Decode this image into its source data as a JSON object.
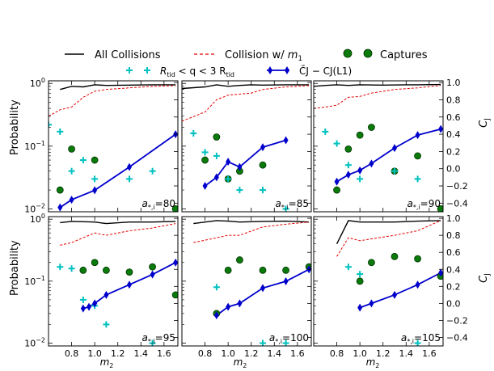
{
  "chart_data": {
    "type": "line",
    "layout": "2x3 panel grid with shared legend",
    "legend": {
      "all_collisions": "All Collisions",
      "collision_m1_prefix": "Collision w/ ",
      "collision_m1_var": "m",
      "collision_m1_sub": "1",
      "captures": "Captures",
      "tidal_prefix": "R",
      "tidal_sub": "tid",
      "tidal_mid": " < q < 3 R",
      "tidal_sub2": "tid",
      "cj_label": "C̄J − CJ(L1)"
    },
    "colors": {
      "all_collisions": "#000000",
      "collision_m1": "#e60000",
      "captures_fill": "#0a7a0a",
      "captures_edge": "#003300",
      "tidal": "#00c0c0",
      "cj": "#0000cc"
    },
    "x_axis": {
      "label_var": "m",
      "label_sub": "2",
      "range": [
        0.6,
        1.72
      ],
      "ticks": [
        0.8,
        1.0,
        1.2,
        1.4,
        1.6
      ],
      "tick_labels": [
        "0.8",
        "1.0",
        "1.2",
        "1.4",
        "1.6"
      ]
    },
    "y_left": {
      "label": "Probability",
      "scale": "log",
      "range": [
        0.009,
        1.1
      ],
      "ticks": [
        0.01,
        0.1,
        1
      ],
      "tick_labels": [
        {
          "base": "10",
          "exp": "−2"
        },
        {
          "base": "10",
          "exp": "−1"
        },
        {
          "base": "10",
          "exp": "0"
        }
      ]
    },
    "y_right": {
      "label_var": "C",
      "label_sub": "J",
      "range": [
        -0.5,
        1.02
      ],
      "ticks": [
        1.0,
        0.8,
        0.6,
        0.4,
        0.2,
        0.0,
        -0.2,
        -0.4
      ],
      "tick_labels": [
        "1.0",
        "0.8",
        "0.6",
        "0.4",
        "0.2",
        "0.0",
        "−0.2",
        "−0.4"
      ]
    },
    "panels": [
      {
        "label_prefix": "a",
        "label_sub": "*,i",
        "label_value": "=80",
        "all_collisions": {
          "x": [
            0.7,
            0.8,
            0.9,
            1.0,
            1.1,
            1.3,
            1.5,
            1.7
          ],
          "y": [
            0.8,
            0.9,
            0.88,
            0.95,
            0.93,
            0.94,
            0.95,
            0.95
          ]
        },
        "collision_m1": {
          "x": [
            0.6,
            0.7,
            0.8,
            0.9,
            1.0,
            1.1,
            1.3,
            1.5,
            1.7
          ],
          "y": [
            0.3,
            0.38,
            0.42,
            0.6,
            0.75,
            0.8,
            0.85,
            0.9,
            0.92
          ]
        },
        "captures": {
          "x": [
            0.7,
            0.8,
            1.0,
            1.7
          ],
          "y": [
            0.02,
            0.09,
            0.06,
            0.01
          ]
        },
        "tidal": {
          "x": [
            0.6,
            0.7,
            0.8,
            0.9,
            1.0,
            1.3,
            1.5
          ],
          "y": [
            0.22,
            0.17,
            0.04,
            0.06,
            0.03,
            0.03,
            0.04
          ]
        },
        "cj": {
          "x": [
            0.7,
            0.8,
            1.0,
            1.3,
            1.7
          ],
          "y": [
            -0.45,
            -0.36,
            -0.25,
            0.02,
            0.4
          ]
        }
      },
      {
        "label_prefix": "a",
        "label_sub": "*,i",
        "label_value": "=85",
        "all_collisions": {
          "x": [
            0.6,
            0.8,
            0.9,
            1.0,
            1.1,
            1.2,
            1.3,
            1.5,
            1.7
          ],
          "y": [
            0.83,
            0.88,
            0.95,
            0.9,
            0.93,
            0.95,
            0.94,
            0.95,
            0.95
          ]
        },
        "collision_m1": {
          "x": [
            0.6,
            0.8,
            0.9,
            1.0,
            1.2,
            1.3,
            1.5,
            1.7
          ],
          "y": [
            0.25,
            0.35,
            0.55,
            0.65,
            0.7,
            0.8,
            0.88,
            0.92
          ]
        },
        "captures": {
          "x": [
            0.8,
            0.9,
            1.0,
            1.1,
            1.3
          ],
          "y": [
            0.06,
            0.14,
            0.03,
            0.04,
            0.05
          ]
        },
        "tidal": {
          "x": [
            0.7,
            0.8,
            0.9,
            1.0,
            1.1,
            1.3,
            1.5
          ],
          "y": [
            0.16,
            0.08,
            0.07,
            0.03,
            0.02,
            0.02,
            0.01
          ]
        },
        "cj": {
          "x": [
            0.8,
            0.9,
            1.0,
            1.1,
            1.3,
            1.5
          ],
          "y": [
            -0.2,
            -0.1,
            0.08,
            0.02,
            0.25,
            0.33
          ]
        }
      },
      {
        "label_prefix": "a",
        "label_sub": "*,i",
        "label_value": "=90",
        "all_collisions": {
          "x": [
            0.6,
            0.7,
            0.8,
            0.9,
            1.0,
            1.2,
            1.4,
            1.5,
            1.7
          ],
          "y": [
            0.9,
            0.93,
            0.95,
            0.93,
            0.95,
            0.94,
            0.95,
            0.95,
            0.96
          ]
        },
        "collision_m1": {
          "x": [
            0.6,
            0.7,
            0.8,
            0.9,
            1.0,
            1.1,
            1.3,
            1.5,
            1.7
          ],
          "y": [
            0.4,
            0.42,
            0.45,
            0.6,
            0.62,
            0.7,
            0.8,
            0.85,
            0.93
          ]
        },
        "captures": {
          "x": [
            0.8,
            0.9,
            1.0,
            1.1,
            1.3,
            1.5,
            1.7
          ],
          "y": [
            0.02,
            0.09,
            0.15,
            0.2,
            0.04,
            0.07,
            0.01
          ]
        },
        "tidal": {
          "x": [
            0.7,
            0.8,
            0.9,
            1.0,
            1.3,
            1.5
          ],
          "y": [
            0.17,
            0.11,
            0.05,
            0.03,
            0.04,
            0.03
          ]
        },
        "cj": {
          "x": [
            0.8,
            0.9,
            1.0,
            1.1,
            1.3,
            1.5,
            1.7
          ],
          "y": [
            -0.15,
            -0.07,
            -0.02,
            0.06,
            0.24,
            0.39,
            0.46
          ]
        }
      },
      {
        "label_prefix": "a",
        "label_sub": "*,i",
        "label_value": "=95",
        "all_collisions": {
          "x": [
            0.7,
            0.8,
            1.0,
            1.1,
            1.3,
            1.5,
            1.7
          ],
          "y": [
            0.88,
            0.92,
            0.9,
            0.85,
            0.9,
            0.9,
            0.92
          ]
        },
        "collision_m1": {
          "x": [
            0.7,
            0.8,
            1.0,
            1.1,
            1.3,
            1.5,
            1.7
          ],
          "y": [
            0.38,
            0.42,
            0.6,
            0.55,
            0.65,
            0.72,
            0.85
          ]
        },
        "captures": {
          "x": [
            0.9,
            1.0,
            1.1,
            1.3,
            1.5,
            1.7
          ],
          "y": [
            0.15,
            0.2,
            0.15,
            0.14,
            0.17,
            0.06
          ]
        },
        "tidal": {
          "x": [
            0.7,
            0.8,
            0.9,
            1.0,
            1.1,
            1.5
          ],
          "y": [
            0.17,
            0.16,
            0.05,
            0.04,
            0.02,
            0.01
          ]
        },
        "cj": {
          "x": [
            0.9,
            0.95,
            1.0,
            1.1,
            1.3,
            1.5,
            1.7
          ],
          "y": [
            -0.06,
            -0.04,
            0.0,
            0.1,
            0.22,
            0.34,
            0.48
          ]
        }
      },
      {
        "label_prefix": "a",
        "label_sub": "*,i",
        "label_value": "=100",
        "all_collisions": {
          "x": [
            0.7,
            0.9,
            1.0,
            1.1,
            1.3,
            1.5,
            1.7
          ],
          "y": [
            0.85,
            0.95,
            0.93,
            0.9,
            0.92,
            0.93,
            0.9
          ]
        },
        "collision_m1": {
          "x": [
            0.7,
            0.9,
            1.0,
            1.1,
            1.3,
            1.5,
            1.7
          ],
          "y": [
            0.42,
            0.5,
            0.55,
            0.55,
            0.75,
            0.83,
            0.9
          ]
        },
        "captures": {
          "x": [
            0.9,
            1.0,
            1.1,
            1.3,
            1.5,
            1.7
          ],
          "y": [
            0.03,
            0.15,
            0.22,
            0.15,
            0.15,
            0.17
          ]
        },
        "tidal": {
          "x": [
            0.9,
            1.3,
            1.5
          ],
          "y": [
            0.08,
            0.01,
            0.01
          ]
        },
        "cj": {
          "x": [
            0.9,
            1.0,
            1.1,
            1.3,
            1.5,
            1.7
          ],
          "y": [
            -0.14,
            -0.04,
            0.0,
            0.18,
            0.26,
            0.4
          ]
        }
      },
      {
        "label_prefix": "a",
        "label_sub": "*,i",
        "label_value": "=105",
        "all_collisions": {
          "x": [
            0.8,
            0.9,
            1.0,
            1.3,
            1.5,
            1.7
          ],
          "y": [
            0.4,
            0.95,
            0.9,
            0.9,
            0.93,
            0.95
          ]
        },
        "collision_m1": {
          "x": [
            0.8,
            0.9,
            1.0,
            1.3,
            1.5,
            1.7
          ],
          "y": [
            0.25,
            0.5,
            0.45,
            0.55,
            0.65,
            0.95
          ]
        },
        "captures": {
          "x": [
            1.0,
            1.1,
            1.3,
            1.5,
            1.7
          ],
          "y": [
            0.1,
            0.2,
            0.25,
            0.23,
            0.12
          ]
        },
        "tidal": {
          "x": [
            0.9,
            1.0,
            1.5
          ],
          "y": [
            0.17,
            0.13,
            0.01
          ]
        },
        "cj": {
          "x": [
            1.0,
            1.1,
            1.3,
            1.5,
            1.7
          ],
          "y": [
            -0.05,
            0.0,
            0.1,
            0.22,
            0.36
          ]
        }
      }
    ]
  }
}
